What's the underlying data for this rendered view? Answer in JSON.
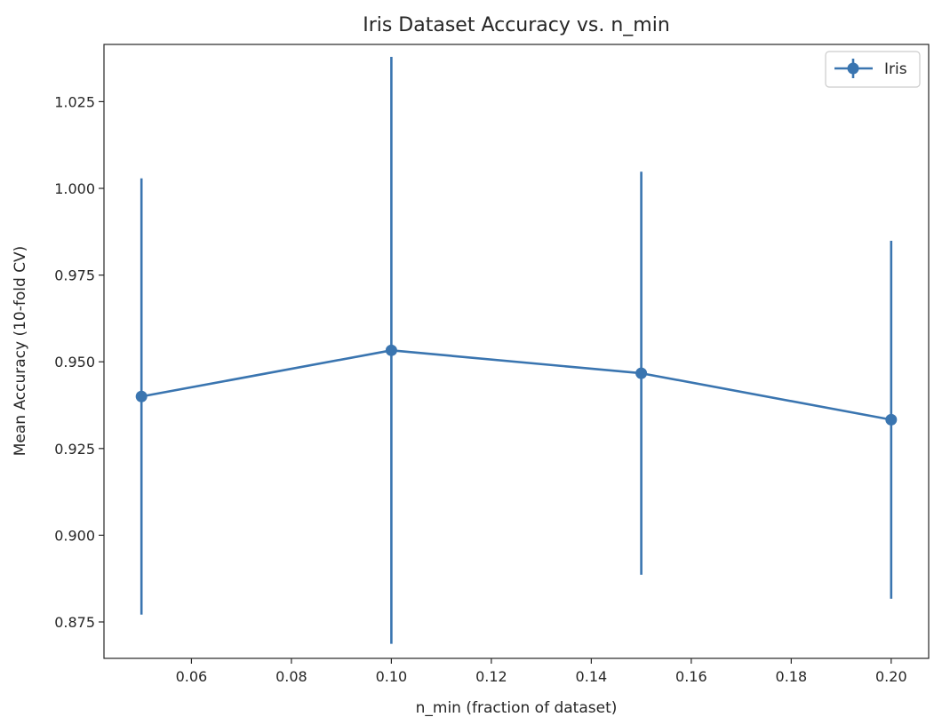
{
  "chart_data": {
    "type": "line",
    "title": "Iris Dataset Accuracy vs. n_min",
    "xlabel": "n_min (fraction of dataset)",
    "ylabel": "Mean Accuracy (10-fold CV)",
    "xlim": [
      0.0425,
      0.2075
    ],
    "ylim": [
      0.8645,
      1.0415
    ],
    "xticks": [
      0.06,
      0.08,
      0.1,
      0.12,
      0.14,
      0.16,
      0.18,
      0.2
    ],
    "xtick_labels": [
      "0.06",
      "0.08",
      "0.10",
      "0.12",
      "0.14",
      "0.16",
      "0.18",
      "0.20"
    ],
    "yticks": [
      0.875,
      0.9,
      0.925,
      0.95,
      0.975,
      1.0,
      1.025
    ],
    "ytick_labels": [
      "0.875",
      "0.900",
      "0.925",
      "0.950",
      "0.975",
      "1.000",
      "1.025"
    ],
    "grid": false,
    "legend_position": "top-right",
    "series": [
      {
        "name": "Iris",
        "color": "#3a75b0",
        "marker": "circle",
        "error_bars": true,
        "x": [
          0.05,
          0.1,
          0.15,
          0.2
        ],
        "y": [
          0.94,
          0.9533,
          0.9467,
          0.9333
        ],
        "yerr": [
          0.0629,
          0.0846,
          0.0581,
          0.0516
        ]
      }
    ]
  }
}
